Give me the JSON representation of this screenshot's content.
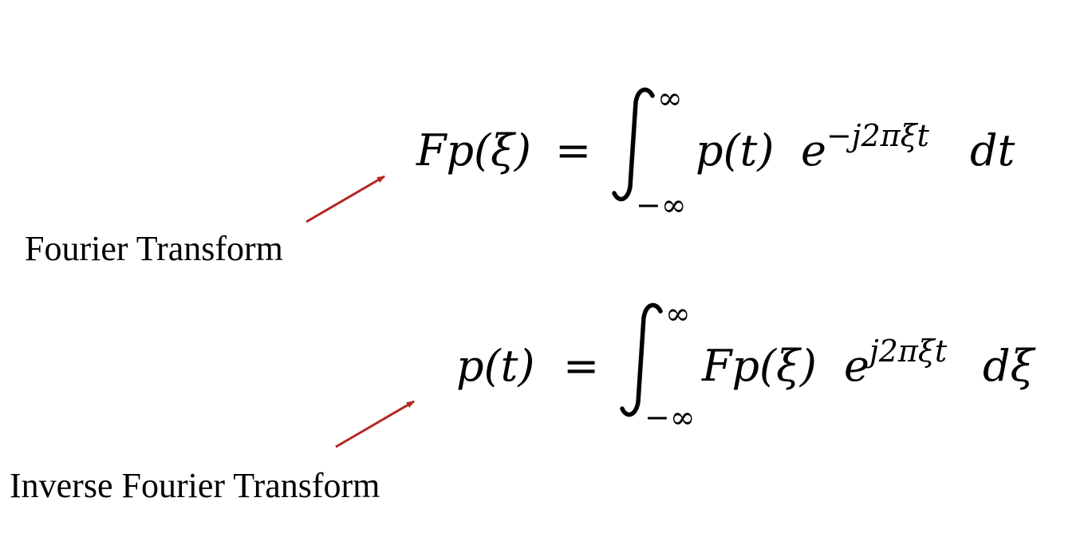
{
  "labels": {
    "forward": "Fourier Transform",
    "inverse": "Inverse Fourier Transform"
  },
  "equations": {
    "forward": {
      "lhs": "Fp(ξ)",
      "equals": "=",
      "upper_limit": "∞",
      "lower_limit": "−∞",
      "integrand": "p(t)",
      "exp_base": "e",
      "exponent": "−j2πξt",
      "differential": "dt"
    },
    "inverse": {
      "lhs": "p(t)",
      "equals": "=",
      "upper_limit": "∞",
      "lower_limit": "−∞",
      "integrand": "Fp(ξ)",
      "exp_base": "e",
      "exponent": "j2πξt",
      "differential": "dξ"
    }
  },
  "colors": {
    "arrow": "#b3261e",
    "text": "#000000",
    "background": "#ffffff"
  }
}
